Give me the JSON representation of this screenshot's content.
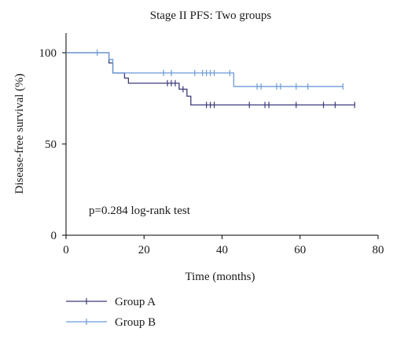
{
  "chart_data": {
    "type": "line",
    "subtype": "kaplan-meier",
    "title": "Stage II PFS: Two groups",
    "xlabel": "Time (months)",
    "ylabel": "Disease-free survival (%)",
    "xlim": [
      0,
      80
    ],
    "ylim": [
      0,
      100
    ],
    "xticks": [
      0,
      20,
      40,
      60,
      80
    ],
    "yticks": [
      0,
      50,
      100
    ],
    "grid": false,
    "legend_position": "bottom-left",
    "annotation": "p=0.284 log-rank test",
    "series": [
      {
        "name": "Group A",
        "color": "#3b3b7a",
        "steps": [
          [
            0,
            100
          ],
          [
            11,
            94.4
          ],
          [
            12,
            88.9
          ],
          [
            15,
            86.1
          ],
          [
            16,
            83.3
          ],
          [
            29,
            80.0
          ],
          [
            31,
            76.2
          ],
          [
            32,
            71.4
          ],
          [
            74,
            71.4
          ]
        ],
        "censored": [
          26,
          27,
          28,
          30,
          36,
          37,
          38,
          47,
          51,
          52,
          59,
          66,
          69,
          74
        ]
      },
      {
        "name": "Group B",
        "color": "#6b9ad6",
        "steps": [
          [
            0,
            100
          ],
          [
            11,
            96.3
          ],
          [
            12,
            88.9
          ],
          [
            43,
            81.5
          ],
          [
            71,
            81.5
          ]
        ],
        "censored": [
          8,
          25,
          27,
          33,
          35,
          36,
          37,
          38,
          42,
          49,
          50,
          54,
          55,
          59,
          62,
          71
        ]
      }
    ]
  }
}
